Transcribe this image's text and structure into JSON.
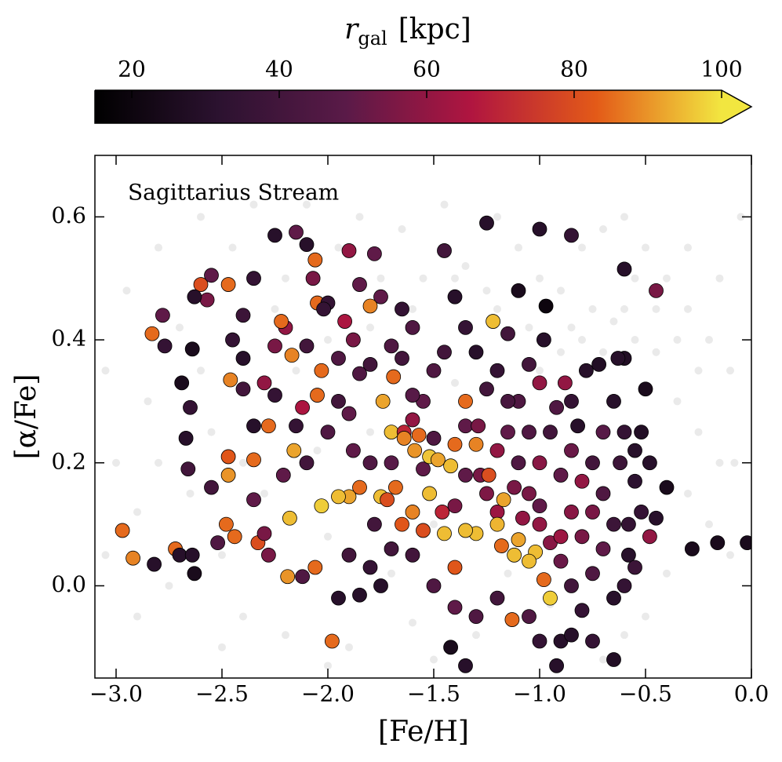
{
  "chart_data": {
    "type": "scatter",
    "annotation": "Sagittarius Stream",
    "x_label": "[Fe/H]",
    "y_label": "[α/Fe]",
    "xlim": [
      -3.1,
      0.0
    ],
    "ylim": [
      -0.15,
      0.7
    ],
    "xticks": [
      {
        "value": -3.0,
        "label": "−3.0"
      },
      {
        "value": -2.5,
        "label": "−2.5"
      },
      {
        "value": -2.0,
        "label": "−2.0"
      },
      {
        "value": -1.5,
        "label": "−1.5"
      },
      {
        "value": -1.0,
        "label": "−1.0"
      },
      {
        "value": -0.5,
        "label": "−0.5"
      },
      {
        "value": 0.0,
        "label": "0.0"
      }
    ],
    "yticks": [
      {
        "value": 0.0,
        "label": "0.0"
      },
      {
        "value": 0.2,
        "label": "0.2"
      },
      {
        "value": 0.4,
        "label": "0.4"
      },
      {
        "value": 0.6,
        "label": "0.6"
      }
    ],
    "colorbar": {
      "label": "r",
      "label_sub": "gal",
      "label_unit": "[kpc]",
      "lim": [
        15,
        100
      ],
      "ticks": [
        20,
        40,
        60,
        80,
        100
      ],
      "extend": "max",
      "cmap": [
        "#000000",
        "#2c1230",
        "#5a1a48",
        "#b01540",
        "#e35a18",
        "#f2e640"
      ]
    },
    "series": [
      {
        "color": "#8a8a8a",
        "x": [
          -3.05,
          -3.0,
          -2.95,
          -2.9,
          -2.85,
          -2.8,
          -2.75,
          -2.7,
          -2.65,
          -2.6,
          -2.55,
          -2.5,
          -2.45,
          -2.4,
          -2.35,
          -2.3,
          -2.25,
          -2.2,
          -2.15,
          -2.1,
          -2.05,
          -2.0,
          -1.95,
          -1.9,
          -1.85,
          -1.8,
          -1.75,
          -1.7,
          -1.65,
          -1.6,
          -1.55,
          -1.5,
          -1.45,
          -1.4,
          -1.35,
          -1.3,
          -1.25,
          -1.2,
          -1.15,
          -1.1,
          -1.05,
          -1.0,
          -0.95,
          -0.9,
          -0.85,
          -0.8,
          -0.75,
          -0.7,
          -0.65,
          -0.6,
          -0.55,
          -0.5,
          -0.45,
          -0.4,
          -0.35,
          -0.3,
          -0.25,
          -0.2,
          -0.15,
          -0.1,
          -0.05,
          -0.3,
          -0.2,
          -0.1,
          -0.4,
          -0.5,
          -0.6,
          -0.7,
          -1.5,
          -2.0,
          -2.5,
          -2.9,
          -3.05,
          -0.9,
          -1.0,
          -0.8,
          -0.7,
          -1.2,
          -1.4,
          -1.6,
          -1.8,
          -2.0,
          -2.2,
          -2.4,
          -2.6,
          -2.8,
          -0.3,
          -0.15,
          -0.08,
          -0.55,
          -0.45,
          -0.35,
          -0.25,
          -0.6
        ],
        "y": [
          0.35,
          0.2,
          0.48,
          0.12,
          0.3,
          0.55,
          0.0,
          0.42,
          0.15,
          0.6,
          0.25,
          0.05,
          0.55,
          -0.05,
          0.62,
          0.15,
          0.45,
          -0.08,
          0.35,
          0.62,
          0.22,
          0.08,
          0.55,
          -0.1,
          0.6,
          0.25,
          0.5,
          0.02,
          0.58,
          -0.06,
          0.5,
          0.1,
          0.62,
          0.33,
          0.52,
          -0.08,
          0.48,
          0.6,
          0.02,
          0.55,
          0.42,
          0.5,
          -0.03,
          0.48,
          0.42,
          0.55,
          0.45,
          0.58,
          0.43,
          0.6,
          0.4,
          0.55,
          0.38,
          0.5,
          0.3,
          0.45,
          0.25,
          0.4,
          0.2,
          0.35,
          0.6,
          0.15,
          0.1,
          0.05,
          0.02,
          -0.05,
          -0.08,
          -0.12,
          -0.12,
          -0.13,
          -0.1,
          -0.05,
          0.05,
          0.38,
          0.35,
          0.4,
          0.38,
          0.45,
          0.5,
          0.45,
          0.42,
          0.4,
          0.5,
          0.2,
          0.35,
          0.2,
          0.55,
          0.5,
          0.2,
          0.5,
          0.45,
          0.4,
          0.35,
          0.45
        ]
      },
      {
        "x": [
          -1.1,
          -1.05,
          -1.0,
          -0.95,
          -0.9,
          -0.85,
          -0.8,
          -0.75,
          -0.7,
          -0.65,
          -0.6,
          -0.58,
          -0.55,
          -0.52,
          -0.48,
          -0.45,
          -0.4,
          -0.5,
          -0.6,
          -0.65,
          -0.72,
          -0.78,
          -0.82,
          -0.88,
          -0.92,
          -0.98,
          -1.05,
          -1.1,
          -1.15,
          -1.2,
          -1.25,
          -1.3,
          -1.35,
          -1.4,
          -1.45,
          -1.5,
          -1.55,
          -1.6,
          -1.65,
          -1.7,
          -1.75,
          -1.8,
          -1.45,
          -1.25,
          -1.0,
          -0.85,
          -0.6,
          -0.45,
          -1.1,
          -0.97,
          -1.15,
          -1.35,
          -1.28,
          -1.2,
          -1.12,
          -1.08,
          -1.0,
          -0.95,
          -0.9,
          -0.85,
          -0.8,
          -0.75,
          -0.7,
          -0.65,
          -0.6,
          -0.55,
          -0.9,
          -0.85,
          -0.75,
          -0.65,
          -0.92,
          -1.0,
          -1.05,
          -1.2,
          -1.3,
          -1.4,
          -1.42,
          -1.35,
          -1.5,
          -1.6,
          -1.7,
          -1.8,
          -1.9,
          -1.95,
          -1.85,
          -1.75,
          -0.28,
          -0.16,
          -0.02,
          -0.63,
          -0.58,
          -0.7,
          -0.75,
          -0.8,
          -0.85,
          -0.9,
          -1.0,
          -1.05,
          -1.15,
          -1.2,
          -1.25,
          -1.35,
          -1.4,
          -1.5,
          -1.55,
          -1.6,
          -1.65,
          -1.95,
          -2.0,
          -2.1,
          -2.15,
          -2.25,
          -2.35,
          -2.4,
          -2.45,
          -2.4,
          -2.35,
          -2.1,
          -1.95,
          -1.9,
          -1.88,
          -1.8,
          -1.78,
          -1.7,
          -1.0,
          -0.85,
          -0.62,
          -0.55,
          -0.52,
          -0.48,
          -2.97,
          -2.92,
          -2.82,
          -2.72,
          -2.7,
          -2.64,
          -2.83,
          -2.78,
          -2.77,
          -2.64,
          -2.69,
          -2.67,
          -2.66,
          -2.65,
          -2.6,
          -2.57,
          -2.55,
          -2.63,
          -2.47,
          -2.46,
          -2.47,
          -2.47,
          -2.48,
          -2.44,
          -2.4,
          -2.35,
          -2.33,
          -2.28,
          -2.25,
          -2.15,
          -2.1,
          -2.06,
          -2.07,
          -2.05,
          -2.0,
          -1.9,
          -1.78,
          -1.85,
          -2.02,
          -2.2,
          -2.22,
          -2.17,
          -2.03,
          -2.05,
          -2.12,
          -2.16,
          -2.21,
          -2.28,
          -2.3,
          -2.25,
          -2.18,
          -2.19,
          -2.12,
          -2.06,
          -1.98,
          -2.35,
          -2.3,
          -2.55,
          -2.52,
          -2.63,
          -1.92,
          -1.88,
          -1.85,
          -1.8,
          -1.74,
          -1.7,
          -1.69,
          -1.64,
          -1.6,
          -1.57,
          -1.52,
          -1.48,
          -1.42,
          -1.4,
          -1.35,
          -1.29,
          -1.3,
          -1.24,
          -1.22,
          -1.17,
          -1.2,
          -1.3,
          -1.35,
          -1.45,
          -1.46,
          -1.52,
          -1.6,
          -1.68,
          -1.75,
          -1.85,
          -1.9,
          -1.95,
          -2.03,
          -1.64,
          -1.59,
          -1.12,
          -1.02,
          -1.05,
          -0.98,
          -0.95,
          -1.13,
          -1.4,
          -1.55,
          -1.65,
          -1.72,
          -1.1,
          -1.18
        ],
        "y": [
          0.2,
          0.15,
          0.1,
          0.25,
          0.18,
          0.12,
          0.08,
          0.2,
          0.15,
          0.1,
          0.25,
          0.05,
          0.17,
          0.12,
          0.08,
          0.11,
          0.16,
          0.32,
          0.37,
          0.3,
          0.36,
          0.35,
          0.26,
          0.33,
          0.29,
          0.4,
          0.36,
          0.3,
          0.25,
          0.35,
          0.32,
          0.38,
          0.42,
          0.47,
          0.38,
          0.35,
          0.3,
          0.42,
          0.45,
          0.39,
          0.47,
          0.36,
          0.545,
          0.59,
          0.58,
          0.57,
          0.515,
          0.48,
          0.48,
          0.455,
          0.41,
          0.26,
          0.18,
          0.22,
          0.16,
          0.11,
          0.13,
          0.07,
          0.04,
          0.0,
          -0.04,
          0.02,
          0.06,
          -0.02,
          0.0,
          0.03,
          -0.09,
          -0.08,
          -0.09,
          -0.12,
          -0.13,
          -0.09,
          -0.05,
          -0.02,
          -0.05,
          -0.035,
          -0.1,
          -0.13,
          0.0,
          0.05,
          0.06,
          0.03,
          0.05,
          -0.02,
          -0.015,
          0.0,
          0.06,
          0.07,
          0.07,
          0.37,
          0.1,
          0.25,
          0.12,
          0.17,
          0.22,
          0.08,
          0.2,
          0.25,
          0.3,
          0.12,
          0.15,
          0.18,
          0.13,
          0.24,
          0.19,
          0.31,
          0.37,
          0.3,
          0.25,
          0.2,
          0.26,
          0.31,
          0.26,
          0.37,
          0.4,
          0.44,
          0.5,
          0.39,
          0.37,
          0.28,
          0.22,
          0.2,
          0.1,
          0.2,
          0.33,
          0.3,
          0.2,
          0.22,
          0.25,
          0.2,
          0.09,
          0.045,
          0.035,
          0.06,
          0.05,
          0.05,
          0.41,
          0.44,
          0.39,
          0.385,
          0.33,
          0.24,
          0.19,
          0.29,
          0.49,
          0.465,
          0.505,
          0.47,
          0.49,
          0.335,
          0.21,
          0.18,
          0.1,
          0.08,
          0.32,
          0.205,
          0.07,
          0.05,
          0.57,
          0.575,
          0.555,
          0.53,
          0.5,
          0.46,
          0.46,
          0.545,
          0.54,
          0.49,
          0.45,
          0.42,
          0.43,
          0.375,
          0.35,
          0.31,
          0.29,
          0.22,
          0.18,
          0.26,
          0.33,
          0.39,
          0.11,
          0.015,
          0.015,
          0.03,
          -0.09,
          0.14,
          0.085,
          0.16,
          0.07,
          0.02,
          0.43,
          0.4,
          0.345,
          0.455,
          0.3,
          0.25,
          0.34,
          0.25,
          0.27,
          0.245,
          0.21,
          0.205,
          0.195,
          0.23,
          0.3,
          0.26,
          0.23,
          0.18,
          0.43,
          0.14,
          0.1,
          0.085,
          0.09,
          0.085,
          0.12,
          0.15,
          0.12,
          0.16,
          0.145,
          0.16,
          0.145,
          0.145,
          0.13,
          0.24,
          0.22,
          0.05,
          0.055,
          0.04,
          0.01,
          -0.02,
          -0.055,
          0.03,
          0.09,
          0.1,
          0.14,
          0.075,
          0.065
        ],
        "c": [
          45,
          55,
          60,
          40,
          50,
          58,
          55,
          40,
          45,
          38,
          35,
          30,
          32,
          35,
          60,
          30,
          25,
          25,
          28,
          30,
          28,
          30,
          30,
          60,
          45,
          30,
          40,
          45,
          50,
          35,
          40,
          30,
          35,
          30,
          40,
          45,
          50,
          45,
          35,
          45,
          50,
          40,
          40,
          30,
          30,
          35,
          30,
          55,
          25,
          20,
          40,
          50,
          55,
          60,
          55,
          60,
          50,
          58,
          52,
          40,
          35,
          45,
          50,
          30,
          35,
          38,
          30,
          30,
          35,
          28,
          30,
          35,
          45,
          40,
          45,
          50,
          25,
          30,
          45,
          40,
          40,
          35,
          40,
          30,
          30,
          30,
          25,
          25,
          25,
          30,
          35,
          48,
          55,
          60,
          52,
          62,
          58,
          45,
          42,
          62,
          56,
          50,
          55,
          45,
          50,
          48,
          40,
          40,
          45,
          40,
          35,
          35,
          30,
          30,
          35,
          38,
          35,
          40,
          45,
          50,
          50,
          45,
          40,
          48,
          60,
          35,
          38,
          30,
          28,
          30,
          85,
          88,
          30,
          85,
          30,
          30,
          85,
          50,
          35,
          25,
          25,
          30,
          40,
          35,
          80,
          55,
          50,
          30,
          85,
          88,
          82,
          90,
          85,
          85,
          40,
          85,
          80,
          55,
          30,
          50,
          30,
          85,
          55,
          85,
          35,
          60,
          50,
          50,
          35,
          60,
          85,
          88,
          85,
          85,
          65,
          92,
          50,
          85,
          60,
          55,
          95,
          90,
          45,
          85,
          85,
          50,
          55,
          40,
          45,
          25,
          65,
          55,
          45,
          88,
          92,
          95,
          85,
          70,
          60,
          85,
          96,
          92,
          95,
          85,
          85,
          55,
          88,
          80,
          95,
          92,
          94,
          95,
          95,
          95,
          70,
          95,
          88,
          85,
          95,
          85,
          92,
          95,
          97,
          88,
          90,
          95,
          95,
          95,
          85,
          97,
          85,
          82,
          80,
          82,
          80,
          92,
          85
        ]
      }
    ]
  }
}
